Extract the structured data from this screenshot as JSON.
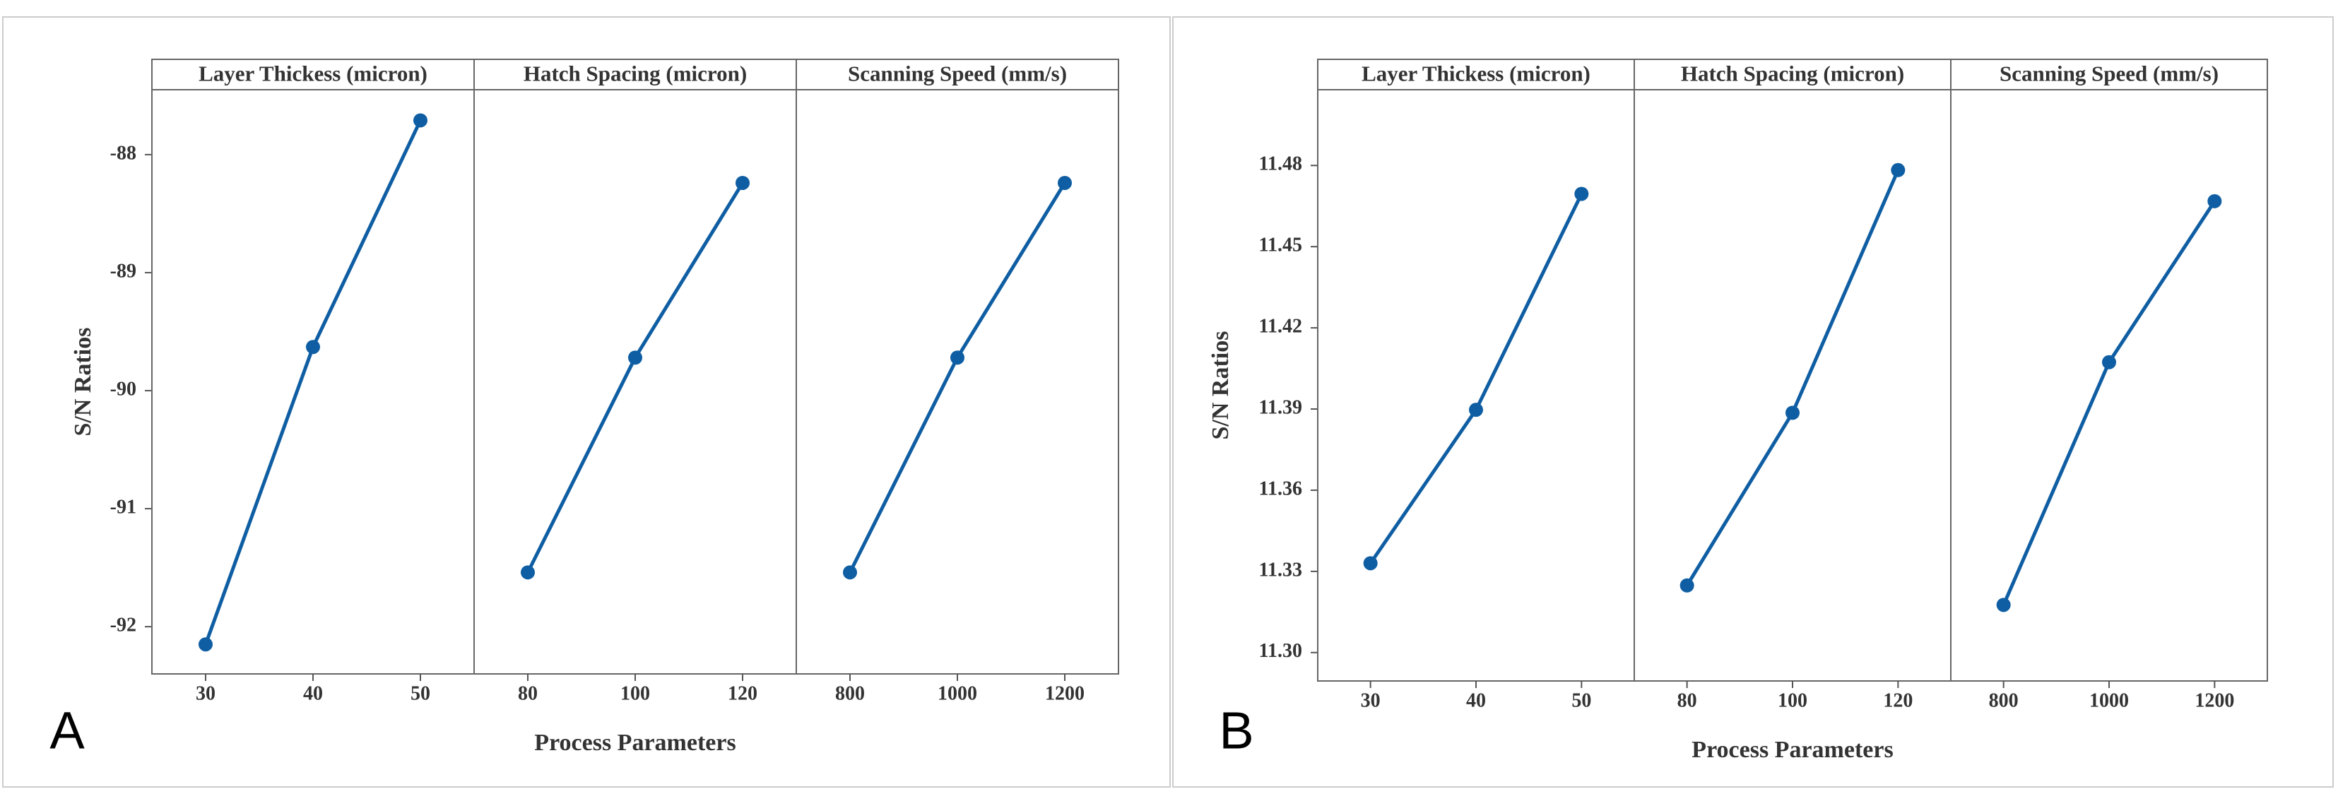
{
  "chart_data": [
    {
      "type": "line",
      "label": "A",
      "xlabel": "Process Parameters",
      "ylabel": "S/N Ratios",
      "color": "#0f5ea3",
      "ylim": [
        -92.4,
        -87.45
      ],
      "yticks": [
        -92,
        -91,
        -90,
        -89,
        -88
      ],
      "panels": [
        {
          "title": "Layer Thickess (micron)",
          "categories": [
            30,
            40,
            50
          ],
          "values": [
            -92.15,
            -89.63,
            -87.71
          ]
        },
        {
          "title": "Hatch Spacing (micron)",
          "categories": [
            80,
            100,
            120
          ],
          "values": [
            -91.54,
            -89.72,
            -88.24
          ]
        },
        {
          "title": "Scanning Speed (mm/s)",
          "categories": [
            800,
            1000,
            1200
          ],
          "values": [
            -91.54,
            -89.72,
            -88.24
          ]
        }
      ]
    },
    {
      "type": "line",
      "label": "B",
      "xlabel": "Process Parameters",
      "ylabel": "S/N Ratios",
      "color": "#0f5ea3",
      "ylim": [
        11.2895,
        11.508
      ],
      "yticks": [
        {
          "value": 11.3,
          "label": "11.30"
        },
        11.33,
        11.36,
        11.39,
        11.42,
        11.45,
        11.48
      ],
      "panels": [
        {
          "title": "Layer Thickess (micron)",
          "categories": [
            30,
            40,
            50
          ],
          "values": [
            11.333,
            11.3897,
            11.4695
          ]
        },
        {
          "title": "Hatch Spacing (micron)",
          "categories": [
            80,
            100,
            120
          ],
          "values": [
            11.3248,
            11.3886,
            11.4783
          ]
        },
        {
          "title": "Scanning Speed (mm/s)",
          "categories": [
            800,
            1000,
            1200
          ],
          "values": [
            11.3176,
            11.4073,
            11.4668
          ]
        }
      ]
    }
  ]
}
